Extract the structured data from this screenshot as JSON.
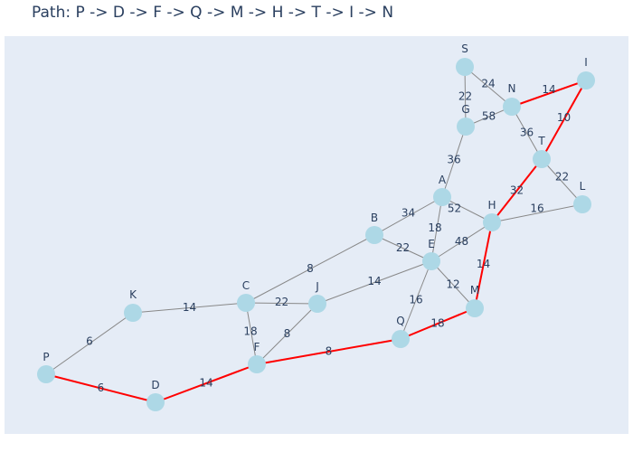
{
  "title": "Path: P -> D -> F -> Q -> M -> H -> T -> I -> N",
  "colors": {
    "background": "#e5ecf6",
    "node": "#add8e6",
    "edge": "#888888",
    "path_edge": "#ff0000",
    "text": "#2a3f5f"
  },
  "chart_data": {
    "type": "graph",
    "nodes": [
      {
        "id": "S"
      },
      {
        "id": "I"
      },
      {
        "id": "N"
      },
      {
        "id": "G"
      },
      {
        "id": "T"
      },
      {
        "id": "L"
      },
      {
        "id": "A"
      },
      {
        "id": "H"
      },
      {
        "id": "B"
      },
      {
        "id": "E"
      },
      {
        "id": "K"
      },
      {
        "id": "C"
      },
      {
        "id": "J"
      },
      {
        "id": "M"
      },
      {
        "id": "Q"
      },
      {
        "id": "F"
      },
      {
        "id": "P"
      },
      {
        "id": "D"
      }
    ],
    "edges": [
      {
        "from": "S",
        "to": "G",
        "weight": "22",
        "on_path": false
      },
      {
        "from": "S",
        "to": "N",
        "weight": "24",
        "on_path": false
      },
      {
        "from": "N",
        "to": "I",
        "weight": "14",
        "on_path": true
      },
      {
        "from": "G",
        "to": "N",
        "weight": "58",
        "on_path": false
      },
      {
        "from": "I",
        "to": "T",
        "weight": "10",
        "on_path": true
      },
      {
        "from": "N",
        "to": "T",
        "weight": "36",
        "on_path": false
      },
      {
        "from": "G",
        "to": "A",
        "weight": "36",
        "on_path": false
      },
      {
        "from": "T",
        "to": "L",
        "weight": "22",
        "on_path": false
      },
      {
        "from": "H",
        "to": "T",
        "weight": "32",
        "on_path": true
      },
      {
        "from": "A",
        "to": "H",
        "weight": "52",
        "on_path": false
      },
      {
        "from": "B",
        "to": "A",
        "weight": "34",
        "on_path": false
      },
      {
        "from": "A",
        "to": "E",
        "weight": "18",
        "on_path": false
      },
      {
        "from": "H",
        "to": "L",
        "weight": "16",
        "on_path": false
      },
      {
        "from": "E",
        "to": "H",
        "weight": "48",
        "on_path": false
      },
      {
        "from": "B",
        "to": "E",
        "weight": "22",
        "on_path": false
      },
      {
        "from": "C",
        "to": "B",
        "weight": "8",
        "on_path": false
      },
      {
        "from": "H",
        "to": "M",
        "weight": "14",
        "on_path": true
      },
      {
        "from": "J",
        "to": "E",
        "weight": "14",
        "on_path": false
      },
      {
        "from": "E",
        "to": "M",
        "weight": "12",
        "on_path": false
      },
      {
        "from": "K",
        "to": "C",
        "weight": "14",
        "on_path": false
      },
      {
        "from": "C",
        "to": "J",
        "weight": "22",
        "on_path": false
      },
      {
        "from": "E",
        "to": "Q",
        "weight": "16",
        "on_path": false
      },
      {
        "from": "C",
        "to": "F",
        "weight": "18",
        "on_path": false
      },
      {
        "from": "J",
        "to": "F",
        "weight": "8",
        "on_path": false
      },
      {
        "from": "Q",
        "to": "M",
        "weight": "18",
        "on_path": true
      },
      {
        "from": "K",
        "to": "P",
        "weight": "6",
        "on_path": false
      },
      {
        "from": "F",
        "to": "Q",
        "weight": "8",
        "on_path": true
      },
      {
        "from": "P",
        "to": "D",
        "weight": "6",
        "on_path": true
      },
      {
        "from": "D",
        "to": "F",
        "weight": "14",
        "on_path": true
      }
    ]
  }
}
